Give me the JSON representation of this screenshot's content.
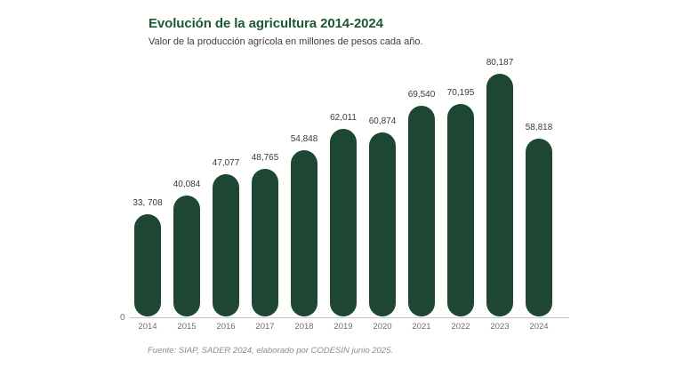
{
  "header": {
    "title": "Evolución de la agricultura 2014-2024",
    "subtitle": "Valor de la producción agrícola en millones de pesos cada año."
  },
  "footer": {
    "source": "Fuente: SIAP, SADER  2024,  elaborado por CODESIN junio 2025."
  },
  "colors": {
    "bar": "#1d4732",
    "title": "#1b5a35",
    "subtitle_text": "#3d3d3d",
    "value_label_text": "#3a3a3a",
    "axis_text": "#6e6e6e",
    "axis_line": "#c4c4c4",
    "source_text": "#8c8c8c",
    "background": "#ffffff"
  },
  "chart_data": {
    "type": "bar",
    "title": "Evolución de la agricultura 2014-2024",
    "subtitle": "Valor de la producción agrícola en millones de pesos cada año.",
    "categories": [
      "2014",
      "2015",
      "2016",
      "2017",
      "2018",
      "2019",
      "2020",
      "2021",
      "2022",
      "2023",
      "2024"
    ],
    "values": [
      33708,
      40084,
      47077,
      48765,
      54848,
      62011,
      60874,
      69540,
      70195,
      80187,
      58818
    ],
    "value_labels": [
      "33, 708",
      "40,084",
      "47,077",
      "48,765",
      "54,848",
      "62,011",
      "60,874",
      "69,540",
      "70,195",
      "80,187",
      "58,818"
    ],
    "xlabel": "",
    "ylabel": "",
    "ylim": [
      0,
      80187
    ],
    "baseline_label": "0",
    "grid": false,
    "legend": "none",
    "bar_shape": "rounded-pill",
    "source": "Fuente: SIAP, SADER  2024,  elaborado por CODESIN junio 2025."
  }
}
